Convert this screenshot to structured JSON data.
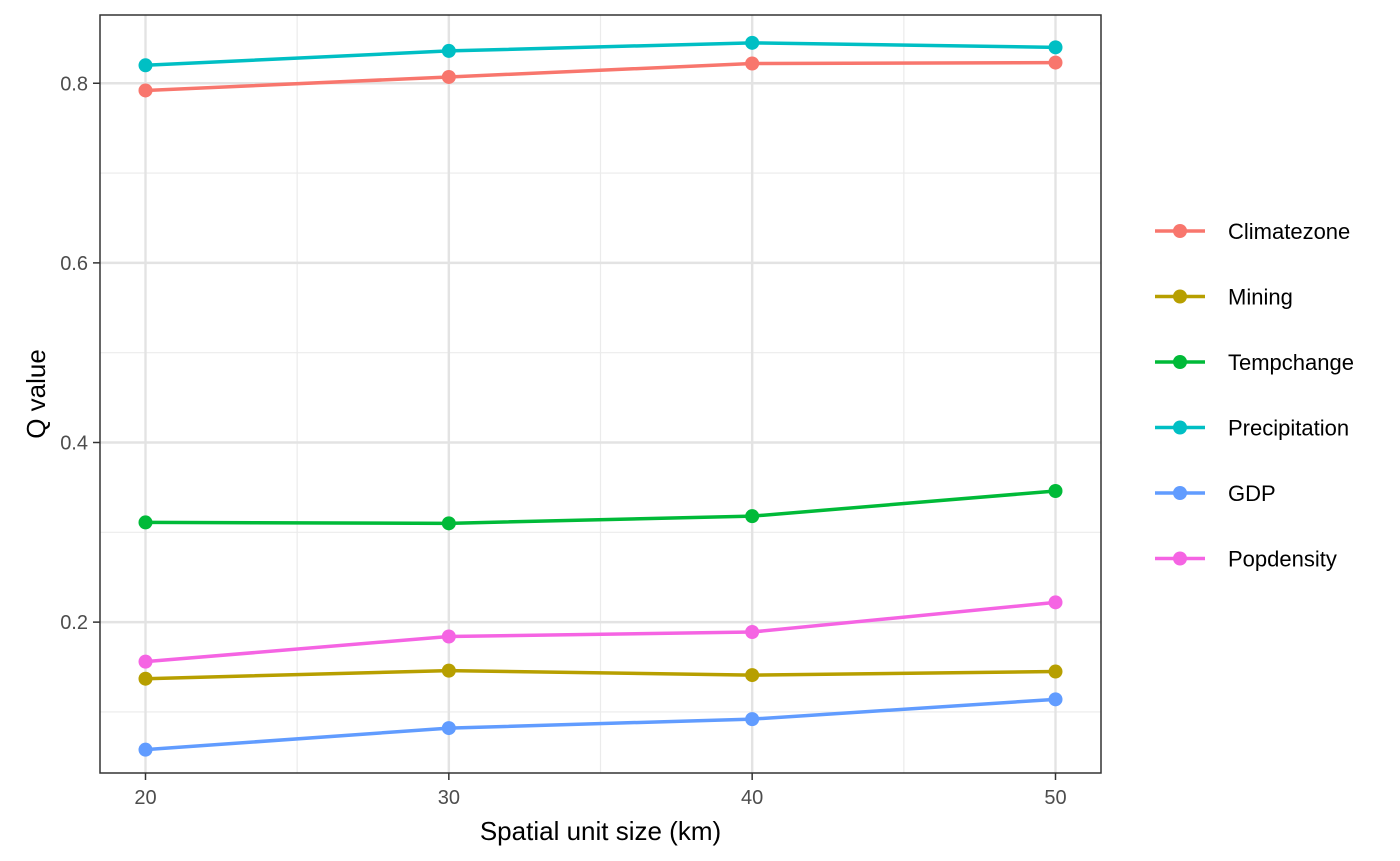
{
  "chart_data": {
    "type": "line",
    "title": "",
    "xlabel": "Spatial unit size (km)",
    "ylabel": "Q value",
    "x": [
      20,
      30,
      40,
      50
    ],
    "xticks": [
      "20",
      "30",
      "40",
      "50"
    ],
    "yticks": [
      "0.2",
      "0.4",
      "0.6",
      "0.8"
    ],
    "xlim": [
      18.5,
      51.5
    ],
    "ylim": [
      0.032,
      0.876
    ],
    "grid": true,
    "legend_position": "right",
    "series": [
      {
        "name": "Climatezone",
        "color": "#F8766D",
        "values": [
          0.792,
          0.807,
          0.822,
          0.823
        ]
      },
      {
        "name": "Mining",
        "color": "#B79F00",
        "values": [
          0.137,
          0.146,
          0.141,
          0.145
        ]
      },
      {
        "name": "Tempchange",
        "color": "#00BA38",
        "values": [
          0.311,
          0.31,
          0.318,
          0.346
        ]
      },
      {
        "name": "Precipitation",
        "color": "#00BFC4",
        "values": [
          0.82,
          0.836,
          0.845,
          0.84
        ]
      },
      {
        "name": "GDP",
        "color": "#619CFF",
        "values": [
          0.058,
          0.082,
          0.092,
          0.114
        ]
      },
      {
        "name": "Popdensity",
        "color": "#F564E3",
        "values": [
          0.156,
          0.184,
          0.189,
          0.222
        ]
      }
    ]
  }
}
